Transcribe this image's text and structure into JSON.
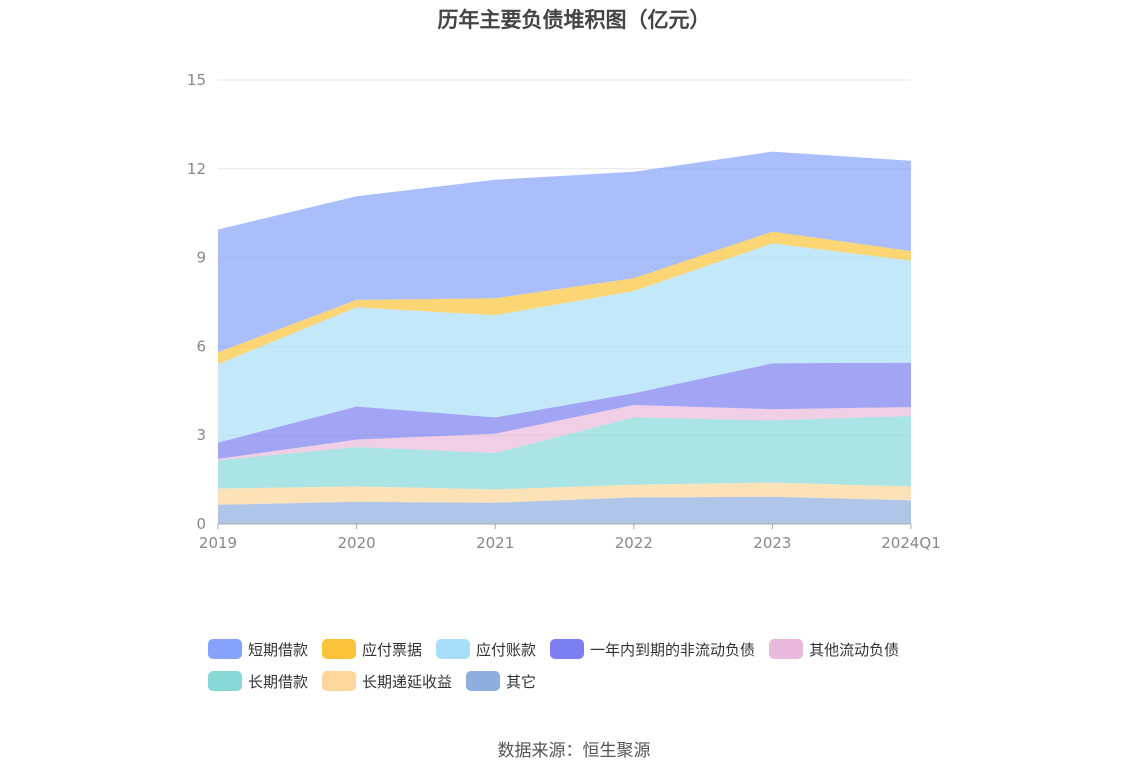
{
  "chart_data": {
    "type": "area",
    "stacked": true,
    "title": "历年主要负债堆积图（亿元）",
    "source": "数据来源：恒生聚源",
    "x": [
      "2019",
      "2020",
      "2021",
      "2022",
      "2023",
      "2024Q1"
    ],
    "y_ticks": [
      "0",
      "3",
      "6",
      "9",
      "12",
      "15"
    ],
    "ylim": [
      0,
      15
    ],
    "grid": true,
    "legend_position": "bottom",
    "series": [
      {
        "name": "其它",
        "color": "#8eaee0",
        "values": [
          0.65,
          0.75,
          0.72,
          0.9,
          0.92,
          0.8
        ]
      },
      {
        "name": "长期递延收益",
        "color": "#fcd69a",
        "values": [
          0.55,
          0.52,
          0.45,
          0.43,
          0.48,
          0.47
        ]
      },
      {
        "name": "长期借款",
        "color": "#88d8d8",
        "values": [
          0.95,
          1.33,
          1.23,
          2.27,
          2.1,
          2.38
        ]
      },
      {
        "name": "其他流动负债",
        "color": "#e8b9dc",
        "values": [
          0.05,
          0.25,
          0.65,
          0.42,
          0.38,
          0.3
        ]
      },
      {
        "name": "一年内到期的非流动负债",
        "color": "#7b7ff0",
        "values": [
          0.55,
          1.12,
          0.55,
          0.4,
          1.55,
          1.5
        ]
      },
      {
        "name": "应付账款",
        "color": "#a8def8",
        "values": [
          2.65,
          3.35,
          3.45,
          3.45,
          4.05,
          3.45
        ]
      },
      {
        "name": "应付票据",
        "color": "#fbc43a",
        "values": [
          0.4,
          0.25,
          0.58,
          0.43,
          0.4,
          0.32
        ]
      },
      {
        "name": "短期借款",
        "color": "#86a2fa",
        "values": [
          4.15,
          3.5,
          4.0,
          3.6,
          2.7,
          3.05
        ]
      }
    ]
  }
}
